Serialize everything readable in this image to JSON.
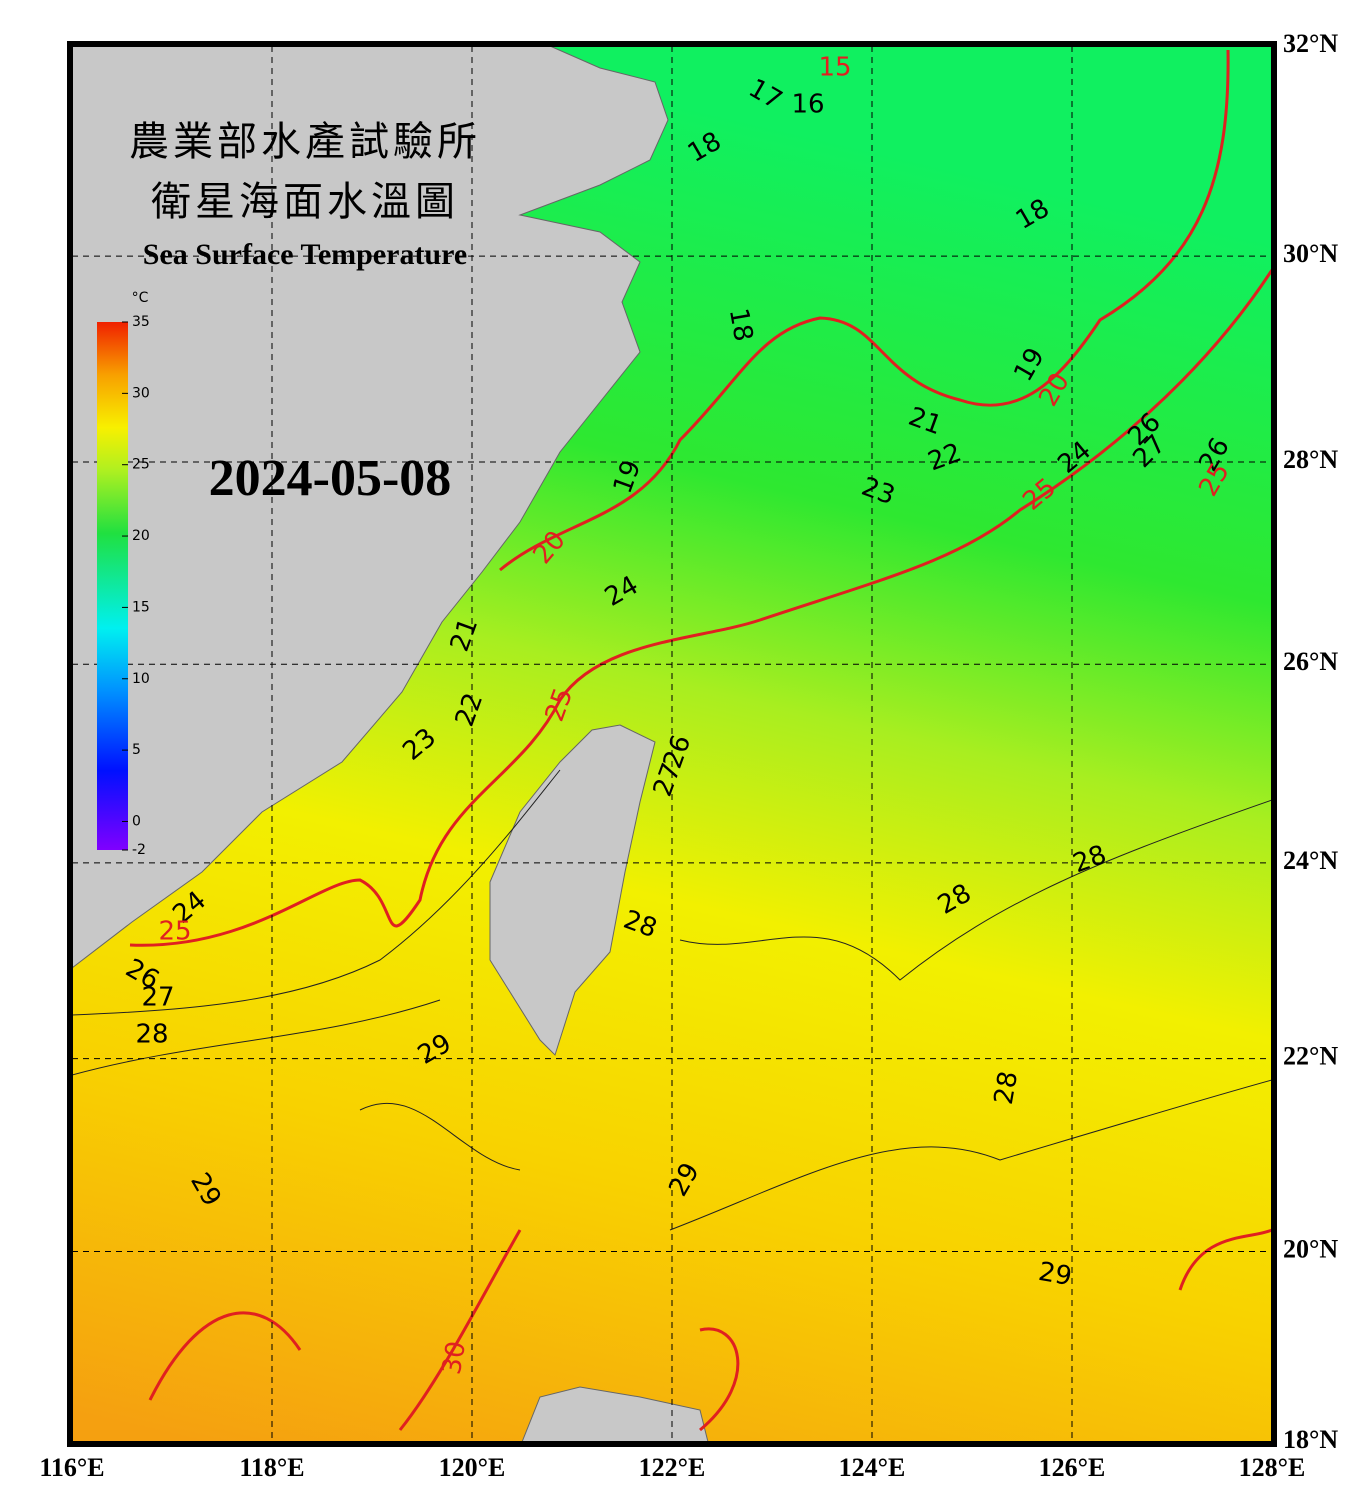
{
  "header": {
    "title_zh_1": "農業部水產試驗所",
    "title_zh_2": "衛星海面水溫圖",
    "title_en": "Sea Surface Temperature",
    "date": "2024-05-08"
  },
  "chart_data": {
    "type": "map",
    "xlim": [
      116,
      128
    ],
    "ylim": [
      18,
      32
    ],
    "projection": "mercator",
    "grid": true,
    "xticks": [
      {
        "value": 116,
        "label": "116°E"
      },
      {
        "value": 118,
        "label": "118°E"
      },
      {
        "value": 120,
        "label": "120°E"
      },
      {
        "value": 122,
        "label": "122°E"
      },
      {
        "value": 124,
        "label": "124°E"
      },
      {
        "value": 126,
        "label": "126°E"
      },
      {
        "value": 128,
        "label": "128°E"
      }
    ],
    "yticks": [
      {
        "value": 18,
        "label": "18°N"
      },
      {
        "value": 20,
        "label": "20°N"
      },
      {
        "value": 22,
        "label": "22°N"
      },
      {
        "value": 24,
        "label": "24°N"
      },
      {
        "value": 26,
        "label": "26°N"
      },
      {
        "value": 28,
        "label": "28°N"
      },
      {
        "value": 30,
        "label": "30°N"
      },
      {
        "value": 32,
        "label": "32°N"
      }
    ],
    "colorbar": {
      "unit": "°C",
      "lim": [
        -2,
        35
      ],
      "ticks": [
        -2,
        0,
        5,
        10,
        15,
        20,
        25,
        30,
        35
      ]
    },
    "isotherm_labels": [
      15,
      17,
      16,
      18,
      18,
      18,
      19,
      20,
      21,
      22,
      23,
      24,
      25,
      26,
      27,
      26,
      25,
      19,
      20,
      24,
      21,
      22,
      25,
      23,
      26,
      27,
      24,
      25,
      26,
      27,
      28,
      28,
      28,
      28,
      29,
      28,
      29,
      29,
      29,
      30
    ]
  }
}
